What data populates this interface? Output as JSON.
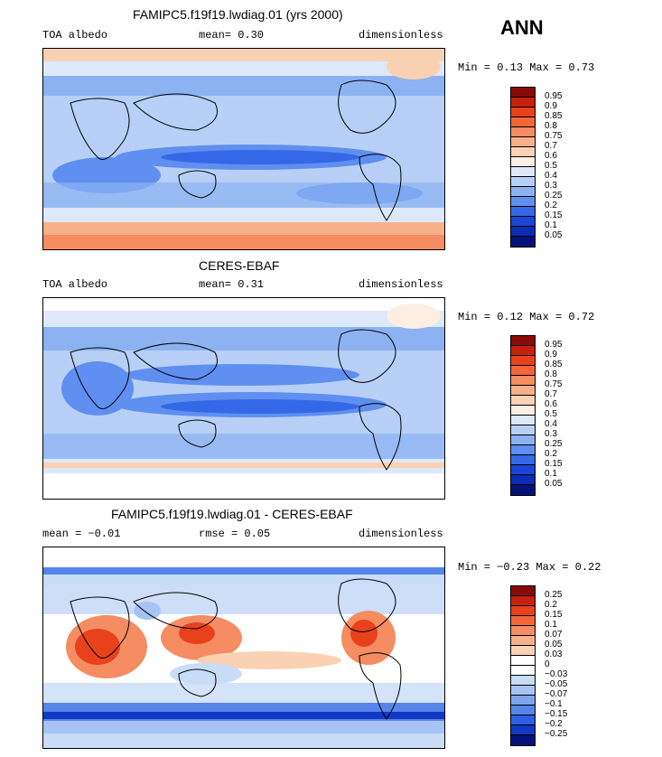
{
  "season": "ANN",
  "panels": [
    {
      "title": "FAMIPC5.f19f19.lwdiag.01 (yrs 2000)",
      "left_label": "TOA albedo",
      "center_label": "mean=   0.30",
      "right_label": "dimensionless",
      "minmax": "Min =   0.13 Max =   0.73",
      "kind": "model"
    },
    {
      "title": "CERES-EBAF",
      "left_label": "TOA albedo",
      "center_label": "mean=   0.31",
      "right_label": "dimensionless",
      "minmax": "Min =   0.12 Max =   0.72",
      "kind": "obs"
    },
    {
      "title": "FAMIPC5.f19f19.lwdiag.01 - CERES-EBAF",
      "left_label": "mean =  −0.01",
      "center_label": "rmse =   0.05",
      "right_label": "dimensionless",
      "minmax": "Min =  −0.23 Max =   0.22",
      "kind": "diff"
    }
  ],
  "colorbars": {
    "absolute": {
      "labels": [
        "0.95",
        "0.9",
        "0.85",
        "0.8",
        "0.75",
        "0.7",
        "0.6",
        "0.5",
        "0.4",
        "0.3",
        "0.25",
        "0.2",
        "0.15",
        "0.1",
        "0.05"
      ],
      "colors": [
        "#8a0a0a",
        "#c8200f",
        "#e8411c",
        "#f2663a",
        "#f58c62",
        "#f8b08a",
        "#fbd1b4",
        "#fdeee2",
        "#dde9fb",
        "#b8d0f7",
        "#8cb2f1",
        "#5f8ff0",
        "#3468e6",
        "#1a45d6",
        "#0a2db4",
        "#04127a"
      ]
    },
    "difference": {
      "labels": [
        "0.25",
        "0.2",
        "0.15",
        "0.1",
        "0.07",
        "0.05",
        "0.03",
        "0",
        "−0.03",
        "−0.05",
        "−0.07",
        "−0.1",
        "−0.15",
        "−0.2",
        "−0.25"
      ],
      "colors": [
        "#8a0a0a",
        "#c8200f",
        "#e8411c",
        "#f2663a",
        "#f58c62",
        "#f8b08a",
        "#fbd1b4",
        "#ffffff",
        "#ffffff",
        "#c9dcf8",
        "#a6c3f4",
        "#7fa5ef",
        "#5585ea",
        "#2e5fe0",
        "#1238c4",
        "#04127a"
      ]
    }
  }
}
